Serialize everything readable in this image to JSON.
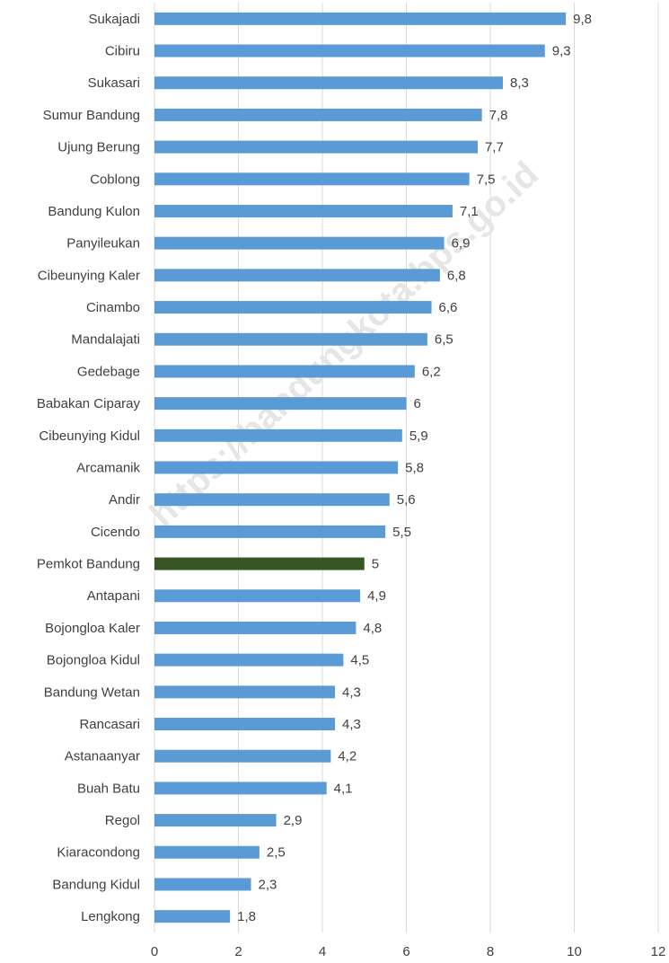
{
  "chart_data": {
    "type": "bar",
    "orientation": "horizontal",
    "categories": [
      "Sukajadi",
      "Cibiru",
      "Sukasari",
      "Sumur Bandung",
      "Ujung Berung",
      "Coblong",
      "Bandung Kulon",
      "Panyileukan",
      "Cibeunying Kaler",
      "Cinambo",
      "Mandalajati",
      "Gedebage",
      "Babakan Ciparay",
      "Cibeunying Kidul",
      "Arcamanik",
      "Andir",
      "Cicendo",
      "Pemkot Bandung",
      "Antapani",
      "Bojongloa Kaler",
      "Bojongloa Kidul",
      "Bandung Wetan",
      "Rancasari",
      "Astanaanyar",
      "Buah Batu",
      "Regol",
      "Kiaracondong",
      "Bandung Kidul",
      "Lengkong"
    ],
    "values": [
      9.8,
      9.3,
      8.3,
      7.8,
      7.7,
      7.5,
      7.1,
      6.9,
      6.8,
      6.6,
      6.5,
      6.2,
      6,
      5.9,
      5.8,
      5.6,
      5.5,
      5,
      4.9,
      4.8,
      4.5,
      4.3,
      4.3,
      4.2,
      4.1,
      2.9,
      2.5,
      2.3,
      1.8
    ],
    "value_labels": [
      "9,8",
      "9,3",
      "8,3",
      "7,8",
      "7,7",
      "7,5",
      "7,1",
      "6,9",
      "6,8",
      "6,6",
      "6,5",
      "6,2",
      "6",
      "5,9",
      "5,8",
      "5,6",
      "5,5",
      "5",
      "4,9",
      "4,8",
      "4,5",
      "4,3",
      "4,3",
      "4,2",
      "4,1",
      "2,9",
      "2,5",
      "2,3",
      "1,8"
    ],
    "colors": [
      "#5b9bd5",
      "#5b9bd5",
      "#5b9bd5",
      "#5b9bd5",
      "#5b9bd5",
      "#5b9bd5",
      "#5b9bd5",
      "#5b9bd5",
      "#5b9bd5",
      "#5b9bd5",
      "#5b9bd5",
      "#5b9bd5",
      "#5b9bd5",
      "#5b9bd5",
      "#5b9bd5",
      "#5b9bd5",
      "#5b9bd5",
      "#375623",
      "#5b9bd5",
      "#5b9bd5",
      "#5b9bd5",
      "#5b9bd5",
      "#5b9bd5",
      "#5b9bd5",
      "#5b9bd5",
      "#5b9bd5",
      "#5b9bd5",
      "#5b9bd5",
      "#5b9bd5"
    ],
    "xlim": [
      0,
      12
    ],
    "xticks": [
      0,
      2,
      4,
      6,
      8,
      10,
      12
    ],
    "grid": true,
    "annotation": "https://bandungkota.bps.go.id"
  }
}
